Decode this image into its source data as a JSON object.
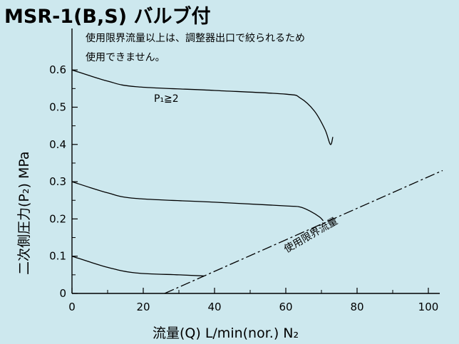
{
  "chart_data": {
    "type": "line",
    "title": "MSR-1(B,S) バルブ付",
    "xlabel": "流量(Q) L/min(nor.) N₂",
    "ylabel": "二次側圧力(P₂) MPa",
    "xlim": [
      0,
      105
    ],
    "ylim": [
      0,
      0.65
    ],
    "x_ticks": [
      "0",
      "20",
      "40",
      "60",
      "80",
      "100"
    ],
    "y_ticks": [
      "0",
      "0.1",
      "0.2",
      "0.3",
      "0.4",
      "0.5",
      "0.6"
    ],
    "grid": false,
    "annotations": {
      "note_line1": "使用限界流量以上は、調整器出口で絞られるため",
      "note_line2": "使用できません。",
      "condition": "P₁≧2",
      "limit_line_label": "使用限界流量"
    },
    "series": [
      {
        "x": [
          0,
          10,
          18,
          40,
          60,
          64,
          68,
          71,
          72.5,
          73.2
        ],
        "y": [
          0.6,
          0.57,
          0.555,
          0.545,
          0.535,
          0.525,
          0.49,
          0.44,
          0.4,
          0.42
        ]
      },
      {
        "x": [
          0,
          10,
          18,
          40,
          60,
          64,
          67,
          69.5,
          70.5
        ],
        "y": [
          0.3,
          0.27,
          0.255,
          0.245,
          0.235,
          0.232,
          0.22,
          0.205,
          0.195
        ]
      },
      {
        "x": [
          0,
          10,
          18,
          30,
          37
        ],
        "y": [
          0.1,
          0.07,
          0.055,
          0.05,
          0.047
        ]
      }
    ],
    "limit_line": {
      "x": [
        26,
        104
      ],
      "y": [
        0,
        0.33
      ]
    }
  }
}
